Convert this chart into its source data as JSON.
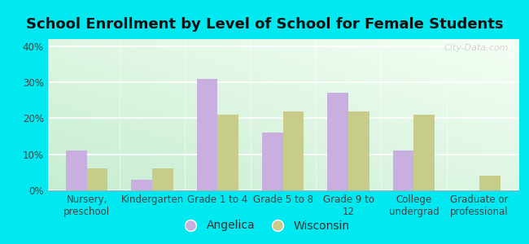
{
  "title": "School Enrollment by Level of School for Female Students",
  "categories": [
    "Nursery,\npreschool",
    "Kindergarten",
    "Grade 1 to 4",
    "Grade 5 to 8",
    "Grade 9 to\n12",
    "College\nundergrad",
    "Graduate or\nprofessional"
  ],
  "angelica": [
    11,
    3,
    31,
    16,
    27,
    11,
    0
  ],
  "wisconsin": [
    6,
    6,
    21,
    22,
    22,
    21,
    4
  ],
  "angelica_color": "#c9aee0",
  "wisconsin_color": "#c8cc8a",
  "background_color": "#00e8f0",
  "ylabel": "",
  "ylim": [
    0,
    42
  ],
  "yticks": [
    0,
    10,
    20,
    30,
    40
  ],
  "ytick_labels": [
    "0%",
    "10%",
    "20%",
    "30%",
    "40%"
  ],
  "legend_labels": [
    "Angelica",
    "Wisconsin"
  ],
  "bar_width": 0.32,
  "title_fontsize": 13,
  "tick_fontsize": 8.5,
  "legend_fontsize": 10,
  "watermark": "City-Data.com"
}
